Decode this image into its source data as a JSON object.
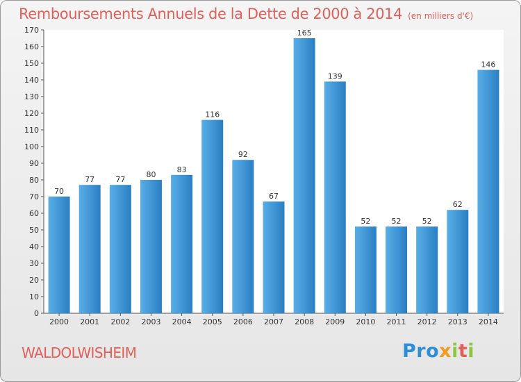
{
  "title": "Remboursements Annuels de la Dette de 2000 à 2014",
  "subtitle": "(en milliers d'€)",
  "commune": "WALDOLWISHEIM",
  "logo": {
    "p1": "Pro",
    "p2": "x",
    "p3": "i",
    "p4": "t",
    "p5": "i"
  },
  "colors": {
    "bar": "#2f8fd6",
    "title": "#e0605a"
  },
  "chart_data": {
    "type": "bar",
    "categories": [
      "2000",
      "2001",
      "2002",
      "2003",
      "2004",
      "2005",
      "2006",
      "2007",
      "2008",
      "2009",
      "2010",
      "2011",
      "2012",
      "2013",
      "2014"
    ],
    "values": [
      70,
      77,
      77,
      80,
      83,
      116,
      92,
      67,
      165,
      139,
      52,
      52,
      52,
      62,
      146
    ],
    "yticks": [
      0,
      10,
      20,
      30,
      40,
      50,
      60,
      70,
      80,
      90,
      100,
      110,
      120,
      130,
      140,
      150,
      160,
      170
    ],
    "ylim": [
      0,
      170
    ],
    "grid": false,
    "title": "Remboursements Annuels de la Dette de 2000 à 2014",
    "xlabel": "",
    "ylabel": ""
  }
}
